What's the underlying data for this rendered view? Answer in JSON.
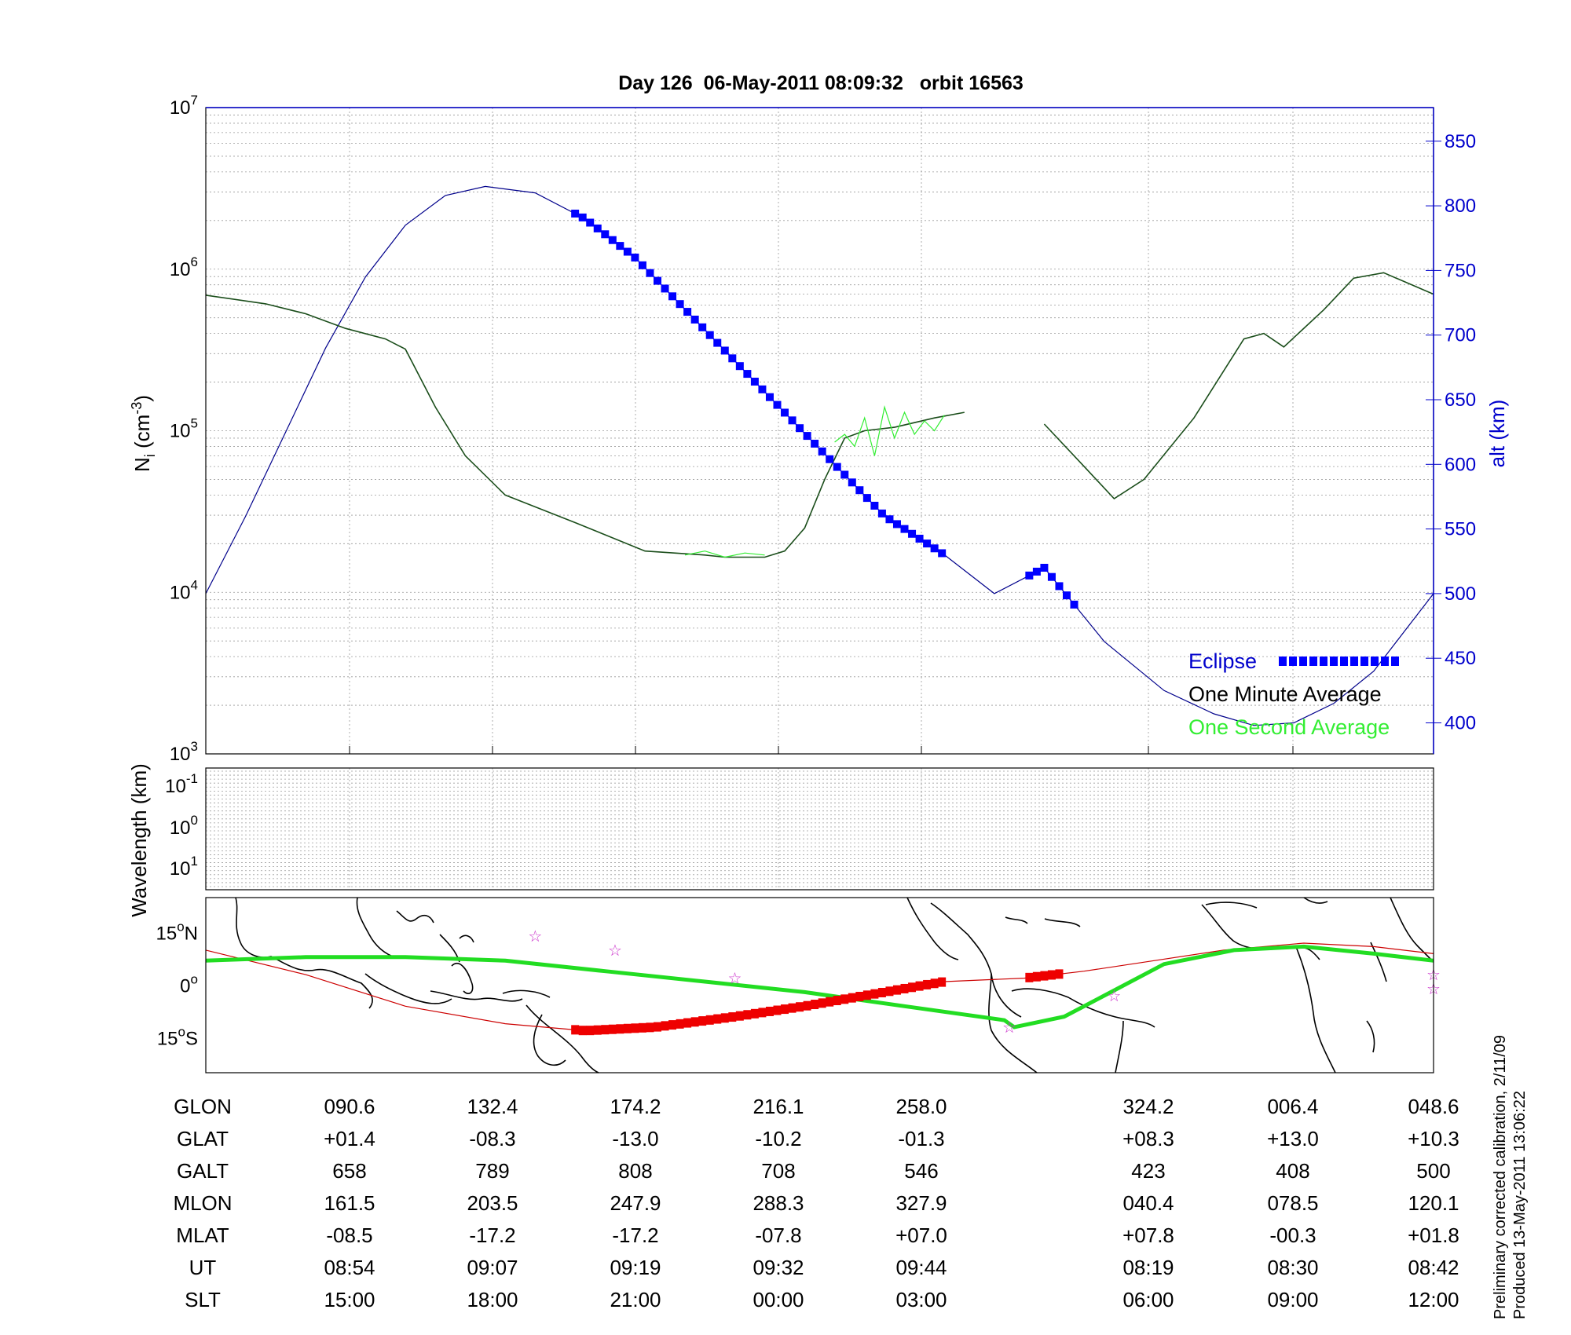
{
  "chart_data": [
    {
      "type": "line",
      "title": "Day 126  06-May-2011 08:09:32   orbit 16563",
      "ylabel": "Ni (cm-3)",
      "ylabel_base": "N",
      "ylabel_sub": "i",
      "ylabel_unit": "(cm",
      "ylabel_sup": "-3",
      "ylabel_close": ")",
      "y_scale": "log",
      "ylim": [
        1000,
        10000000
      ],
      "y_tick_labels": [
        {
          "base": "10",
          "exp": "3",
          "value": 1000
        },
        {
          "base": "10",
          "exp": "4",
          "value": 10000
        },
        {
          "base": "10",
          "exp": "5",
          "value": 100000
        },
        {
          "base": "10",
          "exp": "6",
          "value": 1000000
        },
        {
          "base": "10",
          "exp": "7",
          "value": 10000000
        }
      ],
      "y2label": "alt (km)",
      "y2lim": [
        376,
        876
      ],
      "y2_ticks": [
        "400",
        "450",
        "500",
        "550",
        "600",
        "650",
        "700",
        "750",
        "800",
        "850"
      ],
      "grid": true,
      "series": [
        {
          "name": "One Minute Average",
          "color": "#1a4d1a",
          "segments": [
            [
              [
                0,
                690000
              ],
              [
                6,
                610000
              ],
              [
                10,
                530000
              ],
              [
                14,
                430000
              ],
              [
                18,
                370000
              ],
              [
                20,
                320000
              ],
              [
                23,
                140000
              ],
              [
                26,
                70000
              ],
              [
                30,
                40000
              ],
              [
                37,
                27000
              ],
              [
                44,
                18000
              ],
              [
                50,
                17000
              ],
              [
                52,
                16500
              ],
              [
                56,
                16500
              ],
              [
                58,
                18000
              ],
              [
                60,
                25000
              ],
              [
                62,
                50000
              ],
              [
                64,
                90000
              ],
              [
                66,
                100000
              ],
              [
                69,
                105000
              ],
              [
                73,
                120000
              ],
              [
                76,
                130000
              ]
            ],
            [
              [
                84,
                110000
              ],
              [
                88,
                60000
              ],
              [
                91,
                38000
              ],
              [
                94,
                50000
              ],
              [
                99,
                120000
              ],
              [
                104,
                370000
              ],
              [
                106,
                400000
              ],
              [
                108,
                330000
              ],
              [
                112,
                560000
              ],
              [
                115,
                880000
              ],
              [
                118,
                950000
              ],
              [
                123,
                700000
              ]
            ]
          ]
        },
        {
          "name": "One Second Average",
          "color": "#33ee33",
          "segments": [
            [
              [
                63,
                85000
              ],
              [
                64,
                95000
              ],
              [
                65,
                80000
              ],
              [
                66,
                120000
              ],
              [
                67,
                70000
              ],
              [
                68,
                140000
              ],
              [
                69,
                90000
              ],
              [
                70,
                130000
              ],
              [
                71,
                95000
              ],
              [
                72,
                115000
              ],
              [
                73,
                100000
              ],
              [
                74,
                125000
              ]
            ],
            [
              [
                48,
                17000
              ],
              [
                50,
                18000
              ],
              [
                52,
                16500
              ],
              [
                54,
                17500
              ],
              [
                56,
                17000
              ]
            ]
          ]
        },
        {
          "name": "Altitude",
          "axis": "y2",
          "color": "#00008b",
          "points": [
            [
              0,
              500
            ],
            [
              4,
              560
            ],
            [
              8,
              625
            ],
            [
              12,
              690
            ],
            [
              16,
              745
            ],
            [
              20,
              785
            ],
            [
              24,
              808
            ],
            [
              28,
              815
            ],
            [
              33,
              810
            ],
            [
              38,
              790
            ],
            [
              43,
              760
            ],
            [
              48,
              720
            ],
            [
              53,
              680
            ],
            [
              58,
              640
            ],
            [
              63,
              600
            ],
            [
              68,
              560
            ],
            [
              74,
              530
            ],
            [
              79,
              500
            ],
            [
              84,
              520
            ],
            [
              90,
              463
            ],
            [
              96,
              425
            ],
            [
              101,
              407
            ],
            [
              105,
              398
            ],
            [
              109,
              400
            ],
            [
              113,
              415
            ],
            [
              117,
              440
            ],
            [
              120,
              470
            ],
            [
              123,
              500
            ]
          ]
        },
        {
          "name": "Eclipse",
          "color": "#0000ff",
          "marker": "square",
          "segments": [
            [
              37,
              74
            ],
            [
              82.5,
              87
            ]
          ]
        }
      ],
      "legend": {
        "placement": "bottom-right",
        "entries": [
          {
            "label": "Eclipse",
            "color": "#0000ff"
          },
          {
            "label": "One Minute Average",
            "color": "#000000"
          },
          {
            "label": "One Second Average",
            "color": "#33ee33"
          }
        ]
      }
    },
    {
      "type": "heatmap",
      "ylabel": "Wavelength (km)",
      "y_scale": "log",
      "y_tick_labels": [
        {
          "base": "10",
          "exp": "-1"
        },
        {
          "base": "10",
          "exp": "0"
        },
        {
          "base": "10",
          "exp": "1"
        }
      ],
      "values": []
    },
    {
      "type": "scatter",
      "map": true,
      "y_tick_labels": [
        {
          "num": "15",
          "deg": "o",
          "hem": "N",
          "value": 15
        },
        {
          "num": "0",
          "deg": "o",
          "hem": "",
          "value": 0
        },
        {
          "num": "15",
          "deg": "o",
          "hem": "S",
          "value": -15
        }
      ],
      "ylim": [
        -25,
        25
      ],
      "series": [
        {
          "name": "ground track",
          "color": "#cc0000",
          "points": [
            [
              0,
              10
            ],
            [
              10,
              3
            ],
            [
              20,
              -6
            ],
            [
              30,
              -11
            ],
            [
              38,
              -13
            ],
            [
              45,
              -12
            ],
            [
              53,
              -9
            ],
            [
              60,
              -6
            ],
            [
              68,
              -2
            ],
            [
              74,
              1
            ],
            [
              82,
              2
            ],
            [
              88,
              4
            ],
            [
              95,
              7
            ],
            [
              102,
              10
            ],
            [
              110,
              12
            ],
            [
              117,
              11
            ],
            [
              123,
              9
            ]
          ]
        },
        {
          "name": "magnetic equator",
          "color": "#22dd22",
          "points": [
            [
              0,
              7
            ],
            [
              10,
              8
            ],
            [
              20,
              8
            ],
            [
              30,
              7
            ],
            [
              40,
              4
            ],
            [
              50,
              1
            ],
            [
              60,
              -2
            ],
            [
              70,
              -6
            ],
            [
              80,
              -10
            ],
            [
              81,
              -12
            ],
            [
              86,
              -9
            ],
            [
              90,
              -3
            ],
            [
              96,
              6
            ],
            [
              103,
              10
            ],
            [
              110,
              11
            ],
            [
              117,
              9
            ],
            [
              123,
              7
            ]
          ]
        },
        {
          "name": "eclipse track",
          "color": "#ee0000",
          "segments": [
            [
              37,
              74
            ],
            [
              82.5,
              86
            ]
          ]
        },
        {
          "name": "stars",
          "color": "#cc33cc",
          "points": [
            [
              33,
              14
            ],
            [
              41,
              10
            ],
            [
              53,
              2
            ],
            [
              80.5,
              -12
            ],
            [
              91,
              -3
            ],
            [
              123,
              3
            ],
            [
              123,
              -1
            ]
          ]
        }
      ]
    }
  ],
  "table": {
    "rows": [
      {
        "label": "GLON",
        "values": [
          "090.6",
          "132.4",
          "174.2",
          "216.1",
          "258.0",
          "",
          "324.2",
          "006.4",
          "048.6"
        ]
      },
      {
        "label": "GLAT",
        "values": [
          "+01.4",
          "-08.3",
          "-13.0",
          "-10.2",
          "-01.3",
          "",
          "+08.3",
          "+13.0",
          "+10.3"
        ]
      },
      {
        "label": "GALT",
        "values": [
          "658",
          "789",
          "808",
          "708",
          "546",
          "",
          "423",
          "408",
          "500"
        ]
      },
      {
        "label": "MLON",
        "values": [
          "161.5",
          "203.5",
          "247.9",
          "288.3",
          "327.9",
          "",
          "040.4",
          "078.5",
          "120.1"
        ]
      },
      {
        "label": "MLAT",
        "values": [
          "-08.5",
          "-17.2",
          "-17.2",
          "-07.8",
          "+07.0",
          "",
          "+07.8",
          "-00.3",
          "+01.8"
        ]
      },
      {
        "label": "UT",
        "values": [
          "08:54",
          "09:07",
          "09:19",
          "09:32",
          "09:44",
          "",
          "08:19",
          "08:30",
          "08:42"
        ]
      },
      {
        "label": "SLT",
        "values": [
          "15:00",
          "18:00",
          "21:00",
          "00:00",
          "03:00",
          "",
          "06:00",
          "09:00",
          "12:00"
        ]
      }
    ]
  },
  "notes": {
    "line1": "Preliminary corrected calibration, 2/11/09",
    "line2": "Produced 13-May-2011 13:06:22"
  }
}
